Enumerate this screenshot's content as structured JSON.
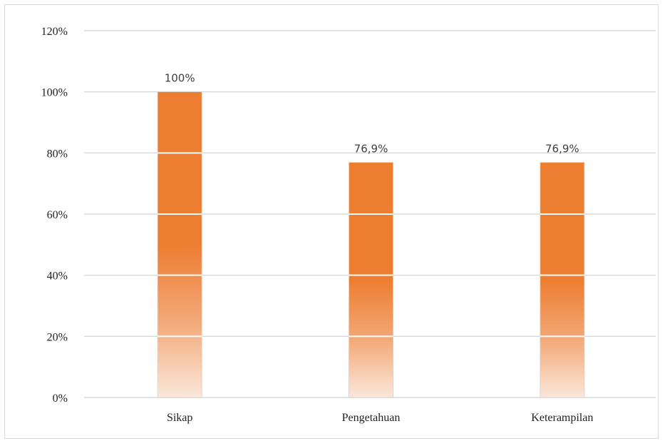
{
  "chart_data": {
    "type": "bar",
    "categories": [
      "Sikap",
      "Pengetahuan",
      "Keterampilan"
    ],
    "values": [
      100,
      76.9,
      76.9
    ],
    "data_labels": [
      "100%",
      "76,9%",
      "76,9%"
    ],
    "ylim": [
      0,
      120
    ],
    "yticks": [
      "0%",
      "20%",
      "40%",
      "60%",
      "80%",
      "100%",
      "120%"
    ],
    "title": "",
    "xlabel": "",
    "ylabel": "",
    "grid": true,
    "legend": "none",
    "bar_color": "#ed7d31",
    "gridline_color": "#d9d9d9"
  }
}
